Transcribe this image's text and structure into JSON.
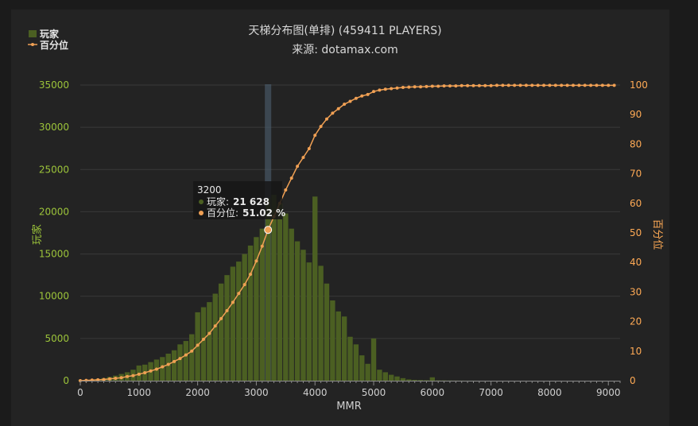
{
  "chart_data": {
    "type": "bar",
    "title": "天梯分布图(单排) (459411 PLAYERS)",
    "subtitle": "来源: dotamax.com",
    "xlabel": "MMR",
    "ylabel_left": "玩家",
    "ylabel_right": "百分位",
    "legend": [
      {
        "name": "玩家",
        "color": "#4b5f22",
        "kind": "bar"
      },
      {
        "name": "百分位",
        "color": "#f0a054",
        "kind": "line"
      }
    ],
    "xlim": [
      0,
      9200
    ],
    "ylim_left": [
      0,
      35000
    ],
    "ylim_right": [
      0,
      100
    ],
    "x_ticks": [
      "0",
      "1000",
      "2000",
      "3000",
      "4000",
      "5000",
      "6000",
      "7000",
      "8000",
      "9000"
    ],
    "y_left_ticks": [
      "0",
      "5000",
      "10000",
      "15000",
      "20000",
      "25000",
      "30000",
      "35000"
    ],
    "y_right_ticks": [
      "0",
      "10",
      "20",
      "30",
      "40",
      "50",
      "60",
      "70",
      "80",
      "90",
      "100"
    ],
    "grid": true,
    "legend_position": "top-left",
    "bin_width": 100,
    "series": [
      {
        "name": "玩家",
        "type": "bar",
        "x": [
          0,
          100,
          200,
          300,
          400,
          500,
          600,
          700,
          800,
          900,
          1000,
          1100,
          1200,
          1300,
          1400,
          1500,
          1600,
          1700,
          1800,
          1900,
          2000,
          2100,
          2200,
          2300,
          2400,
          2500,
          2600,
          2700,
          2800,
          2900,
          3000,
          3100,
          3200,
          3300,
          3400,
          3500,
          3600,
          3700,
          3800,
          3900,
          4000,
          4100,
          4200,
          4300,
          4400,
          4500,
          4600,
          4700,
          4800,
          4900,
          5000,
          5100,
          5200,
          5300,
          5400,
          5500,
          5600,
          5700,
          5800,
          5900,
          6000,
          6100,
          6200,
          6300,
          6400,
          6500,
          6600,
          6700
        ],
        "values": [
          50,
          80,
          120,
          200,
          300,
          450,
          600,
          800,
          1000,
          1300,
          1800,
          1900,
          2200,
          2500,
          2800,
          3200,
          3600,
          4300,
          4700,
          5500,
          8100,
          8700,
          9300,
          10300,
          11500,
          12500,
          13500,
          14100,
          15000,
          16000,
          17000,
          18000,
          21628,
          22000,
          21000,
          19800,
          18000,
          16500,
          15500,
          14000,
          21800,
          13600,
          11500,
          9500,
          8200,
          7600,
          5200,
          4300,
          3000,
          2000,
          5000,
          1300,
          1000,
          700,
          500,
          300,
          150,
          100,
          80,
          60,
          400,
          40,
          30,
          20,
          15,
          10,
          5,
          5
        ]
      },
      {
        "name": "百分位",
        "type": "line",
        "x": [
          0,
          100,
          200,
          300,
          400,
          500,
          600,
          700,
          800,
          900,
          1000,
          1100,
          1200,
          1300,
          1400,
          1500,
          1600,
          1700,
          1800,
          1900,
          2000,
          2100,
          2200,
          2300,
          2400,
          2500,
          2600,
          2700,
          2800,
          2900,
          3000,
          3100,
          3200,
          3300,
          3400,
          3500,
          3600,
          3700,
          3800,
          3900,
          4000,
          4100,
          4200,
          4300,
          4400,
          4500,
          4600,
          4700,
          4800,
          4900,
          5000,
          5100,
          5200,
          5300,
          5400,
          5500,
          5600,
          5700,
          5800,
          5900,
          6000,
          6100,
          6200,
          6300,
          6400,
          6500,
          6600,
          6700,
          6800,
          6900,
          7000,
          7100,
          7200,
          7300,
          7400,
          7500,
          7600,
          7700,
          7800,
          7900,
          8000,
          8100,
          8200,
          8300,
          8400,
          8500,
          8600,
          8700,
          8800,
          8900,
          9000,
          9100
        ],
        "values": [
          0.0,
          0.1,
          0.2,
          0.3,
          0.4,
          0.6,
          0.8,
          1.0,
          1.4,
          1.7,
          2.2,
          2.7,
          3.3,
          3.9,
          4.7,
          5.5,
          6.5,
          7.5,
          8.7,
          10.0,
          12.0,
          14.0,
          16.0,
          18.5,
          21.0,
          23.7,
          26.5,
          29.5,
          32.5,
          36.0,
          40.5,
          45.5,
          51.02,
          55.5,
          60.0,
          64.5,
          68.5,
          72.5,
          75.5,
          78.5,
          83.0,
          86.0,
          88.5,
          90.5,
          92.0,
          93.5,
          94.5,
          95.5,
          96.3,
          96.8,
          97.8,
          98.3,
          98.6,
          98.8,
          99.0,
          99.2,
          99.3,
          99.4,
          99.4,
          99.5,
          99.6,
          99.6,
          99.7,
          99.7,
          99.7,
          99.8,
          99.8,
          99.8,
          99.8,
          99.8,
          99.8,
          99.9,
          99.9,
          99.9,
          99.9,
          99.9,
          99.9,
          99.9,
          99.9,
          99.9,
          99.9,
          99.9,
          99.9,
          99.9,
          99.9,
          99.9,
          99.9,
          99.9,
          99.9,
          99.9,
          99.9,
          99.9
        ]
      }
    ],
    "highlight": {
      "x": 3200,
      "players_label": "玩家:",
      "players_value": "21 628",
      "percentile_label": "百分位:",
      "percentile_value": "51.02 %",
      "percentile": 51.02,
      "header": "3200"
    }
  },
  "colors": {
    "bar": "#4b5f22",
    "line": "#f0a054",
    "grid": "#3a3a3a",
    "highlight_band": "#4a5a6a"
  }
}
